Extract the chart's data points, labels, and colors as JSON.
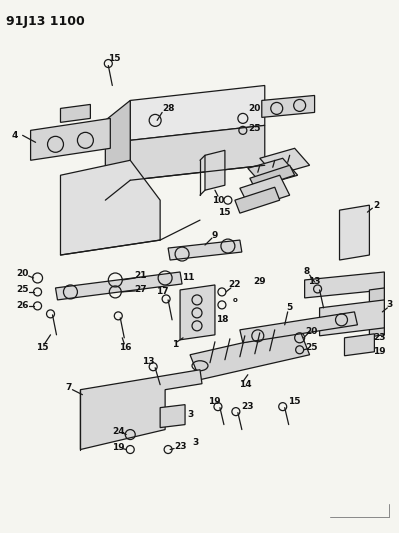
{
  "title": "91J13 1100",
  "bg_color": "#f5f5f0",
  "line_color": "#1a1a1a",
  "text_color": "#111111",
  "fig_width": 3.99,
  "fig_height": 5.33,
  "dpi": 100
}
